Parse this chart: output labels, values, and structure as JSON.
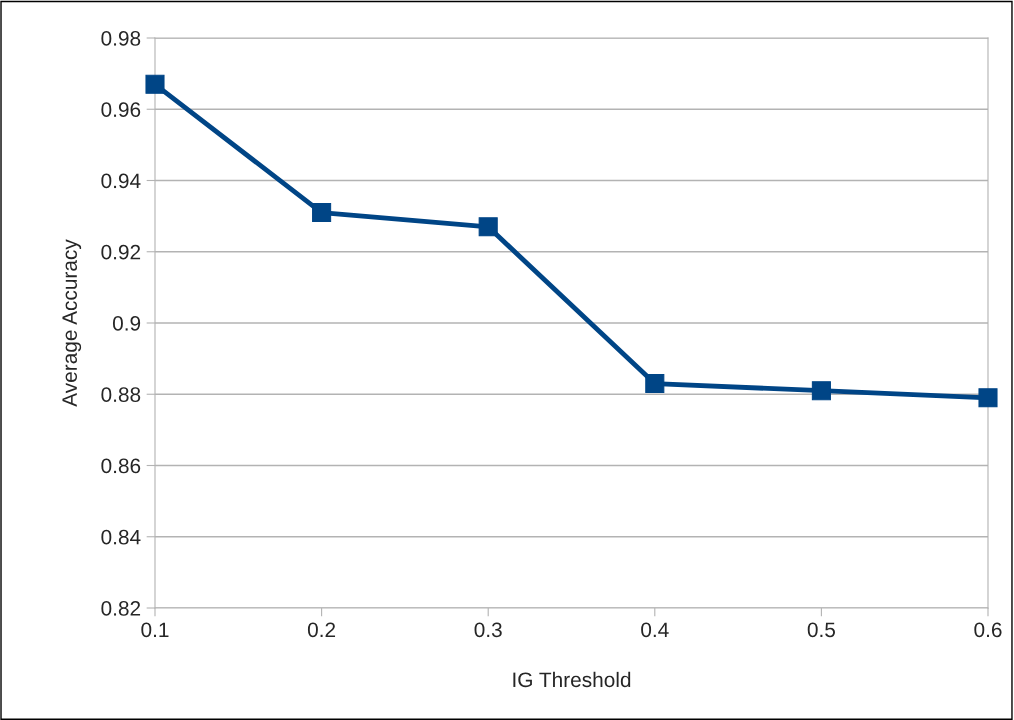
{
  "chart_data": {
    "type": "line",
    "xlabel": "IG Threshold",
    "ylabel": "Average Accuracy",
    "x": [
      0.1,
      0.2,
      0.3,
      0.4,
      0.5,
      0.6
    ],
    "series": [
      {
        "color": "#004586",
        "values": [
          0.967,
          0.931,
          0.927,
          0.883,
          0.881,
          0.879
        ]
      }
    ],
    "xlim": [
      0.1,
      0.6
    ],
    "xticks": [
      0.1,
      0.2,
      0.3,
      0.4,
      0.5,
      0.6
    ],
    "ylim": [
      0.82,
      0.98
    ],
    "yticks": [
      0.82,
      0.84,
      0.86,
      0.88,
      0.9,
      0.92,
      0.94,
      0.96,
      0.98
    ],
    "grid": "y",
    "legend": false,
    "marker": "square",
    "line_style": "solid"
  }
}
